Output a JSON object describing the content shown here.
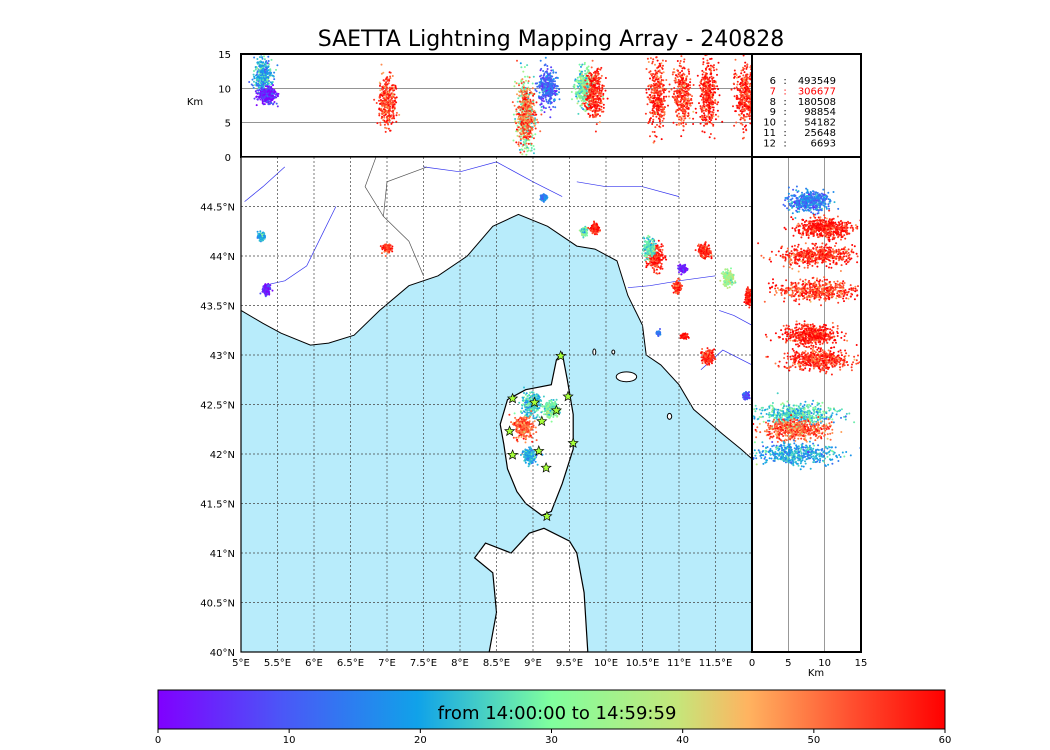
{
  "chart_data": {
    "type": "scatter",
    "title": "SAETTA Lightning Mapping Array - 240828",
    "map": {
      "xlim": [
        5,
        12
      ],
      "ylim": [
        40,
        45
      ],
      "x_tick_labels": [
        {
          "value": 5,
          "label": "5°E"
        },
        {
          "value": 5.5,
          "label": "5.5°E"
        },
        {
          "value": 6,
          "label": "6°E"
        },
        {
          "value": 6.5,
          "label": "6.5°E"
        },
        {
          "value": 7,
          "label": "7°E"
        },
        {
          "value": 7.5,
          "label": "7.5°E"
        },
        {
          "value": 8,
          "label": "8°E"
        },
        {
          "value": 8.5,
          "label": "8.5°E"
        },
        {
          "value": 9,
          "label": "9°E"
        },
        {
          "value": 9.5,
          "label": "9.5°E"
        },
        {
          "value": 10,
          "label": "10°E"
        },
        {
          "value": 10.5,
          "label": "10.5°E"
        },
        {
          "value": 11,
          "label": "11°E"
        },
        {
          "value": 11.5,
          "label": "11.5°E"
        }
      ],
      "y_tick_labels": [
        {
          "value": 40,
          "label": "40°N"
        },
        {
          "value": 40.5,
          "label": "40.5°N"
        },
        {
          "value": 41,
          "label": "41°N"
        },
        {
          "value": 41.5,
          "label": "41.5°N"
        },
        {
          "value": 42,
          "label": "42°N"
        },
        {
          "value": 42.5,
          "label": "42.5°N"
        },
        {
          "value": 43,
          "label": "43°N"
        },
        {
          "value": 43.5,
          "label": "43.5°N"
        },
        {
          "value": 44,
          "label": "44°N"
        },
        {
          "value": 44.5,
          "label": "44.5°N"
        }
      ],
      "sea_color": "#b8ecfb",
      "grid": true
    },
    "altitude_axis": {
      "label": "Km",
      "range": [
        0,
        15
      ],
      "ticks": [
        "0",
        "5",
        "10",
        "15"
      ]
    },
    "colorbar": {
      "range": [
        0,
        60
      ],
      "ticks": [
        "0",
        "10",
        "20",
        "30",
        "40",
        "50",
        "60"
      ],
      "caption": "from 14:00:00 to 14:59:59",
      "colormap": "rainbow"
    },
    "station_counts": [
      {
        "label": "6",
        "value": "493549",
        "color": "#000000"
      },
      {
        "label": "7",
        "value": "306677",
        "color": "#ff0000"
      },
      {
        "label": "8",
        "value": "180508",
        "color": "#000000"
      },
      {
        "label": "9",
        "value": "98854",
        "color": "#000000"
      },
      {
        "label": "10",
        "value": "54182",
        "color": "#000000"
      },
      {
        "label": "11",
        "value": "25648",
        "color": "#000000"
      },
      {
        "label": "12",
        "value": "6693",
        "color": "#000000"
      }
    ],
    "stations": [
      {
        "lon": 9.38,
        "lat": 42.99
      },
      {
        "lon": 8.72,
        "lat": 42.56
      },
      {
        "lon": 9.02,
        "lat": 42.52
      },
      {
        "lon": 9.48,
        "lat": 42.58
      },
      {
        "lon": 9.32,
        "lat": 42.44
      },
      {
        "lon": 9.12,
        "lat": 42.33
      },
      {
        "lon": 8.68,
        "lat": 42.23
      },
      {
        "lon": 9.55,
        "lat": 42.11
      },
      {
        "lon": 9.08,
        "lat": 42.03
      },
      {
        "lon": 8.72,
        "lat": 41.99
      },
      {
        "lon": 9.18,
        "lat": 41.86
      },
      {
        "lon": 9.19,
        "lat": 41.37
      }
    ],
    "clusters": [
      {
        "lon": 5.28,
        "lat": 44.2,
        "sx": 0.05,
        "sy": 0.04,
        "alt": 9,
        "t": 20
      },
      {
        "lon": 5.35,
        "lat": 43.66,
        "sx": 0.05,
        "sy": 0.05,
        "alt": 9,
        "t": 3
      },
      {
        "lon": 7.0,
        "lat": 44.08,
        "sx": 0.06,
        "sy": 0.04,
        "alt": 7,
        "t": 55
      },
      {
        "lon": 9.15,
        "lat": 44.59,
        "sx": 0.04,
        "sy": 0.03,
        "alt": 10,
        "t": 15
      },
      {
        "lon": 9.7,
        "lat": 44.25,
        "sx": 0.04,
        "sy": 0.04,
        "alt": 10,
        "t": 28
      },
      {
        "lon": 9.85,
        "lat": 44.28,
        "sx": 0.05,
        "sy": 0.05,
        "alt": 10,
        "t": 58
      },
      {
        "lon": 10.68,
        "lat": 43.98,
        "sx": 0.1,
        "sy": 0.12,
        "alt": 10,
        "t": 56
      },
      {
        "lon": 10.6,
        "lat": 44.08,
        "sx": 0.08,
        "sy": 0.1,
        "alt": 9,
        "t": 27
      },
      {
        "lon": 11.05,
        "lat": 43.87,
        "sx": 0.05,
        "sy": 0.04,
        "alt": 10,
        "t": 4
      },
      {
        "lon": 10.98,
        "lat": 43.68,
        "sx": 0.05,
        "sy": 0.05,
        "alt": 10,
        "t": 55
      },
      {
        "lon": 11.35,
        "lat": 44.05,
        "sx": 0.08,
        "sy": 0.07,
        "alt": 10,
        "t": 57
      },
      {
        "lon": 11.68,
        "lat": 43.78,
        "sx": 0.08,
        "sy": 0.07,
        "alt": 9,
        "t": 35
      },
      {
        "lon": 11.95,
        "lat": 43.58,
        "sx": 0.04,
        "sy": 0.08,
        "alt": 10,
        "t": 57
      },
      {
        "lon": 11.07,
        "lat": 43.19,
        "sx": 0.04,
        "sy": 0.02,
        "alt": 9,
        "t": 58
      },
      {
        "lon": 10.72,
        "lat": 43.22,
        "sx": 0.02,
        "sy": 0.02,
        "alt": 9,
        "t": 13
      },
      {
        "lon": 11.4,
        "lat": 42.98,
        "sx": 0.08,
        "sy": 0.07,
        "alt": 9,
        "t": 56
      },
      {
        "lon": 11.92,
        "lat": 42.59,
        "sx": 0.04,
        "sy": 0.03,
        "alt": 2,
        "t": 10
      },
      {
        "lon": 8.98,
        "lat": 42.5,
        "sx": 0.14,
        "sy": 0.12,
        "alt": 7,
        "t": 24
      },
      {
        "lon": 8.88,
        "lat": 42.27,
        "sx": 0.12,
        "sy": 0.12,
        "alt": 7,
        "t": 52
      },
      {
        "lon": 8.95,
        "lat": 41.98,
        "sx": 0.1,
        "sy": 0.07,
        "alt": 6,
        "t": 20
      },
      {
        "lon": 9.25,
        "lat": 42.45,
        "sx": 0.1,
        "sy": 0.08,
        "alt": 8,
        "t": 30
      }
    ],
    "altitude_bands": [
      {
        "lon": 5.3,
        "alt": 12,
        "spread": 2.5,
        "t": 20
      },
      {
        "lon": 5.35,
        "alt": 9,
        "spread": 1.2,
        "t": 3
      },
      {
        "lon": 7.0,
        "alt": 8,
        "spread": 4,
        "t": 55
      },
      {
        "lon": 8.9,
        "alt": 6,
        "spread": 6,
        "t": 30
      },
      {
        "lon": 8.9,
        "alt": 6,
        "spread": 5,
        "t": 52
      },
      {
        "lon": 9.2,
        "alt": 10,
        "spread": 3,
        "t": 12
      },
      {
        "lon": 9.7,
        "alt": 10,
        "spread": 3,
        "t": 30
      },
      {
        "lon": 9.85,
        "alt": 9,
        "spread": 4,
        "t": 56
      },
      {
        "lon": 10.7,
        "alt": 9,
        "spread": 5.5,
        "t": 56
      },
      {
        "lon": 11.05,
        "alt": 9,
        "spread": 4.5,
        "t": 55
      },
      {
        "lon": 11.4,
        "alt": 9,
        "spread": 5,
        "t": 57
      },
      {
        "lon": 11.9,
        "alt": 9,
        "spread": 5,
        "t": 56
      }
    ],
    "latitude_bands": [
      {
        "lat": 44.55,
        "alt": 8,
        "spread": 3,
        "t": 15
      },
      {
        "lat": 44.28,
        "alt": 10,
        "spread": 4,
        "t": 58
      },
      {
        "lat": 44.0,
        "alt": 9,
        "spread": 6,
        "t": 56
      },
      {
        "lat": 43.65,
        "alt": 9,
        "spread": 6,
        "t": 55
      },
      {
        "lat": 43.2,
        "alt": 8,
        "spread": 4,
        "t": 58
      },
      {
        "lat": 42.95,
        "alt": 9,
        "spread": 5,
        "t": 56
      },
      {
        "lat": 42.4,
        "alt": 6,
        "spread": 6,
        "t": 25
      },
      {
        "lat": 42.25,
        "alt": 6,
        "spread": 5,
        "t": 52
      },
      {
        "lat": 42.0,
        "alt": 6,
        "spread": 6,
        "t": 20
      }
    ]
  }
}
